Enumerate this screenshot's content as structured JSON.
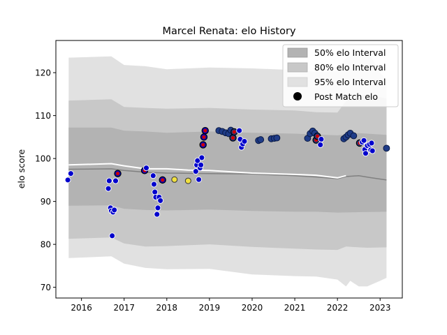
{
  "chart_data": {
    "type": "scatter",
    "title": "Marcel Renata: elo History",
    "xlabel": "",
    "ylabel": "elo score",
    "xlim": [
      2015.4,
      2023.52
    ],
    "ylim": [
      67.5,
      127.5
    ],
    "xticks": [
      2016,
      2017,
      2018,
      2019,
      2020,
      2021,
      2022,
      2023
    ],
    "yticks": [
      70,
      80,
      90,
      100,
      110,
      120
    ],
    "grid": false,
    "legend_position": "top-right",
    "legend": [
      {
        "label": "50% elo Interval",
        "kind": "band",
        "color": "#b3b3b3"
      },
      {
        "label": "80% elo Interval",
        "kind": "band",
        "color": "#c8c8c8"
      },
      {
        "label": "95% elo Interval",
        "kind": "band",
        "color": "#e1e1e1"
      },
      {
        "label": "Post Match elo",
        "kind": "marker",
        "color": "#000000"
      }
    ],
    "colors": {
      "band95": "#e1e1e1",
      "band80": "#c8c8c8",
      "band50": "#b3b3b3",
      "mean_line": "#808080",
      "fit_line": "#ffffff",
      "point_blue": "#0000cc",
      "point_navy": "#1f3c88",
      "point_yellow": "#f0e040",
      "ring_red": "#cc0000"
    },
    "series": [
      {
        "kind": "band95",
        "x": [
          2015.7,
          2016.7,
          2017.0,
          2017.5,
          2018.0,
          2019.0,
          2020.0,
          2021.0,
          2021.5,
          2022.0,
          2022.2,
          2022.3,
          2022.5,
          2022.7,
          2023.0,
          2023.15
        ],
        "upper": [
          123.5,
          123.8,
          121.8,
          121.5,
          120.8,
          121.2,
          121.0,
          120.6,
          120.2,
          120.3,
          123.5,
          124.0,
          124.8,
          125.2,
          120.0,
          118.3
        ],
        "lower": [
          76.8,
          77.2,
          75.5,
          74.5,
          74.2,
          74.3,
          73.0,
          72.6,
          72.5,
          71.8,
          70.2,
          71.5,
          70.2,
          70.2,
          71.5,
          72.2
        ]
      },
      {
        "kind": "band80",
        "x": [
          2015.7,
          2016.7,
          2017.0,
          2017.5,
          2018.0,
          2019.0,
          2020.0,
          2021.0,
          2021.5,
          2022.0,
          2022.2,
          2022.5,
          2022.7,
          2023.15
        ],
        "upper": [
          113.5,
          113.8,
          112.0,
          111.8,
          111.6,
          111.8,
          111.4,
          111.2,
          110.8,
          110.7,
          113.4,
          114.6,
          114.8,
          114.0
        ],
        "lower": [
          81.3,
          81.6,
          80.2,
          79.5,
          79.6,
          80.0,
          79.4,
          79.0,
          78.8,
          78.7,
          79.5,
          79.3,
          79.2,
          79.3
        ]
      },
      {
        "kind": "band50",
        "x": [
          2015.7,
          2016.7,
          2017.0,
          2017.5,
          2018.0,
          2019.0,
          2020.0,
          2021.0,
          2021.5,
          2022.0,
          2022.5,
          2023.15
        ],
        "upper": [
          107.2,
          107.2,
          106.5,
          106.3,
          106.0,
          106.3,
          106.0,
          105.8,
          105.6,
          105.4,
          105.9,
          105.5
        ],
        "lower": [
          89.0,
          89.1,
          88.3,
          88.0,
          87.9,
          88.1,
          87.8,
          87.6,
          87.6,
          87.4,
          87.5,
          87.6
        ]
      },
      {
        "kind": "mean_line",
        "x": [
          2015.7,
          2016.7,
          2017.0,
          2017.5,
          2018.0,
          2019.0,
          2020.0,
          2021.0,
          2021.5,
          2022.0,
          2022.2,
          2022.5,
          2022.8,
          2023.15
        ],
        "y": [
          97.5,
          97.6,
          97.2,
          96.8,
          96.6,
          96.5,
          96.4,
          96.0,
          95.7,
          95.3,
          95.8,
          96.0,
          95.5,
          95.0
        ]
      },
      {
        "kind": "fit_line",
        "x": [
          2015.7,
          2016.7,
          2017.0,
          2017.5,
          2018.0,
          2018.5,
          2019.0,
          2020.0,
          2021.0,
          2021.5,
          2022.0,
          2022.2
        ],
        "y": [
          98.5,
          98.8,
          98.3,
          97.6,
          97.6,
          97.3,
          97.2,
          96.6,
          96.3,
          96.1,
          95.5,
          96.0
        ]
      }
    ],
    "points": [
      {
        "x": 2015.68,
        "y": 95.0,
        "c": "blue"
      },
      {
        "x": 2015.75,
        "y": 96.5,
        "c": "blue"
      },
      {
        "x": 2016.63,
        "y": 93.0,
        "c": "blue"
      },
      {
        "x": 2016.65,
        "y": 94.8,
        "c": "blue"
      },
      {
        "x": 2016.68,
        "y": 88.5,
        "c": "blue"
      },
      {
        "x": 2016.7,
        "y": 87.8,
        "c": "blue"
      },
      {
        "x": 2016.72,
        "y": 82.0,
        "c": "blue"
      },
      {
        "x": 2016.74,
        "y": 87.5,
        "c": "blue"
      },
      {
        "x": 2016.77,
        "y": 88.0,
        "c": "blue"
      },
      {
        "x": 2016.8,
        "y": 94.8,
        "c": "blue"
      },
      {
        "x": 2016.85,
        "y": 96.5,
        "c": "blue",
        "ring": true
      },
      {
        "x": 2017.48,
        "y": 97.2,
        "c": "blue",
        "ring": true
      },
      {
        "x": 2017.52,
        "y": 97.8,
        "c": "blue"
      },
      {
        "x": 2017.68,
        "y": 96.0,
        "c": "blue"
      },
      {
        "x": 2017.7,
        "y": 94.0,
        "c": "blue"
      },
      {
        "x": 2017.72,
        "y": 92.2,
        "c": "blue"
      },
      {
        "x": 2017.74,
        "y": 91.0,
        "c": "blue"
      },
      {
        "x": 2017.77,
        "y": 87.0,
        "c": "blue"
      },
      {
        "x": 2017.79,
        "y": 88.5,
        "c": "blue"
      },
      {
        "x": 2017.82,
        "y": 91.0,
        "c": "blue"
      },
      {
        "x": 2017.85,
        "y": 90.2,
        "c": "blue"
      },
      {
        "x": 2017.9,
        "y": 95.0,
        "c": "blue",
        "ring": true
      },
      {
        "x": 2018.18,
        "y": 95.1,
        "c": "yellow"
      },
      {
        "x": 2018.5,
        "y": 94.8,
        "c": "yellow"
      },
      {
        "x": 2018.68,
        "y": 97.0,
        "c": "blue"
      },
      {
        "x": 2018.7,
        "y": 98.5,
        "c": "blue"
      },
      {
        "x": 2018.72,
        "y": 99.5,
        "c": "blue"
      },
      {
        "x": 2018.75,
        "y": 95.1,
        "c": "blue"
      },
      {
        "x": 2018.78,
        "y": 97.8,
        "c": "blue"
      },
      {
        "x": 2018.8,
        "y": 98.5,
        "c": "blue"
      },
      {
        "x": 2018.82,
        "y": 100.2,
        "c": "blue"
      },
      {
        "x": 2018.85,
        "y": 103.2,
        "c": "blue",
        "ring": true
      },
      {
        "x": 2018.87,
        "y": 105.0,
        "c": "blue",
        "ring": true
      },
      {
        "x": 2018.9,
        "y": 106.5,
        "c": "blue",
        "ring": true
      },
      {
        "x": 2019.22,
        "y": 106.5,
        "c": "navy"
      },
      {
        "x": 2019.3,
        "y": 106.3,
        "c": "navy"
      },
      {
        "x": 2019.38,
        "y": 106.0,
        "c": "navy"
      },
      {
        "x": 2019.45,
        "y": 105.8,
        "c": "navy"
      },
      {
        "x": 2019.5,
        "y": 106.6,
        "c": "navy"
      },
      {
        "x": 2019.55,
        "y": 104.8,
        "c": "navy",
        "ring": true
      },
      {
        "x": 2019.58,
        "y": 106.2,
        "c": "navy",
        "ring": true
      },
      {
        "x": 2019.7,
        "y": 106.5,
        "c": "blue"
      },
      {
        "x": 2019.72,
        "y": 104.5,
        "c": "blue"
      },
      {
        "x": 2019.75,
        "y": 102.6,
        "c": "blue"
      },
      {
        "x": 2019.78,
        "y": 103.4,
        "c": "blue"
      },
      {
        "x": 2019.82,
        "y": 104.0,
        "c": "blue"
      },
      {
        "x": 2020.15,
        "y": 104.2,
        "c": "navy"
      },
      {
        "x": 2020.2,
        "y": 104.4,
        "c": "navy"
      },
      {
        "x": 2020.45,
        "y": 104.6,
        "c": "navy"
      },
      {
        "x": 2020.52,
        "y": 104.7,
        "c": "navy"
      },
      {
        "x": 2020.58,
        "y": 104.8,
        "c": "navy"
      },
      {
        "x": 2021.3,
        "y": 104.7,
        "c": "navy"
      },
      {
        "x": 2021.36,
        "y": 105.8,
        "c": "navy"
      },
      {
        "x": 2021.42,
        "y": 106.4,
        "c": "navy"
      },
      {
        "x": 2021.47,
        "y": 105.9,
        "c": "navy"
      },
      {
        "x": 2021.5,
        "y": 104.3,
        "c": "navy",
        "ring": true
      },
      {
        "x": 2021.53,
        "y": 105.2,
        "c": "navy",
        "ring": true
      },
      {
        "x": 2021.6,
        "y": 103.2,
        "c": "blue"
      },
      {
        "x": 2021.62,
        "y": 104.5,
        "c": "blue"
      },
      {
        "x": 2022.15,
        "y": 104.6,
        "c": "navy"
      },
      {
        "x": 2022.2,
        "y": 105.0,
        "c": "navy"
      },
      {
        "x": 2022.25,
        "y": 105.5,
        "c": "navy"
      },
      {
        "x": 2022.3,
        "y": 105.9,
        "c": "navy"
      },
      {
        "x": 2022.38,
        "y": 105.3,
        "c": "navy"
      },
      {
        "x": 2022.52,
        "y": 103.6,
        "c": "navy",
        "ring": true
      },
      {
        "x": 2022.58,
        "y": 103.8,
        "c": "blue"
      },
      {
        "x": 2022.62,
        "y": 104.2,
        "c": "blue"
      },
      {
        "x": 2022.64,
        "y": 102.1,
        "c": "blue"
      },
      {
        "x": 2022.66,
        "y": 101.2,
        "c": "blue"
      },
      {
        "x": 2022.7,
        "y": 103.0,
        "c": "blue"
      },
      {
        "x": 2022.75,
        "y": 103.3,
        "c": "blue"
      },
      {
        "x": 2022.78,
        "y": 102.0,
        "c": "blue"
      },
      {
        "x": 2022.8,
        "y": 103.6,
        "c": "blue"
      },
      {
        "x": 2022.82,
        "y": 101.8,
        "c": "blue"
      },
      {
        "x": 2023.15,
        "y": 102.4,
        "c": "navy"
      }
    ]
  }
}
